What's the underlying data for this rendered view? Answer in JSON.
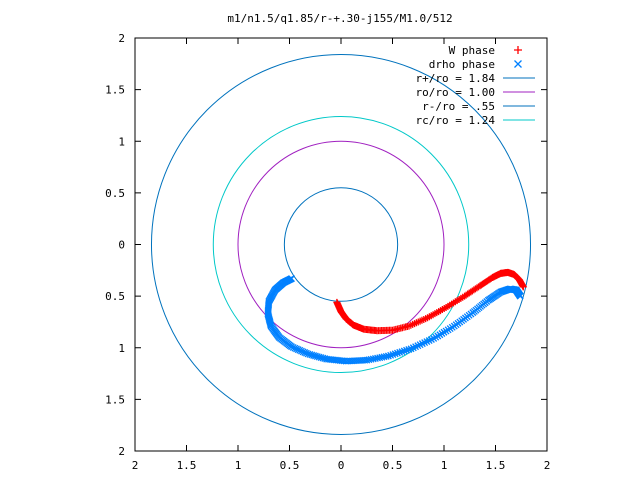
{
  "chart_data": {
    "type": "line",
    "title": "m1/n1.5/q1.85/r-+.30-j155/M1.0/512",
    "xlim": [
      -2,
      2
    ],
    "ylim": [
      -2,
      2
    ],
    "xticks": [
      -2,
      -1.5,
      -1,
      -0.5,
      0,
      0.5,
      1,
      1.5,
      2
    ],
    "yticks": [
      -2,
      -1.5,
      -1,
      -0.5,
      0,
      0.5,
      1,
      1.5,
      2
    ],
    "xtick_labels": [
      "2",
      "1.5",
      "1",
      "0.5",
      "0",
      "0.5",
      "1",
      "1.5",
      "2"
    ],
    "ytick_labels": [
      "2",
      "1.5",
      "1",
      "0.5",
      "0",
      "0.5",
      "1",
      "1.5",
      "2"
    ],
    "grid": false,
    "legend_position": "top-right",
    "colors": {
      "w_phase": "#ff0000",
      "drho_phase": "#0080ff",
      "r_plus": "#0072bd",
      "ro": "#a020c0",
      "r_minus": "#0072bd",
      "rc": "#00c8c8"
    },
    "circles": [
      {
        "name": "r+/ro = 1.84",
        "radius": 1.84,
        "color": "#0072bd"
      },
      {
        "name": "ro/ro = 1.00",
        "radius": 1.0,
        "color": "#a020c0"
      },
      {
        "name": "r-/ro = .55",
        "radius": 0.55,
        "color": "#0072bd"
      },
      {
        "name": "rc/ro = 1.24",
        "radius": 1.24,
        "color": "#00c8c8"
      }
    ],
    "series": [
      {
        "name": "W phase",
        "marker": "plus",
        "color": "#ff0000",
        "x": [
          -0.04,
          0.0,
          0.05,
          0.12,
          0.22,
          0.35,
          0.5,
          0.66,
          0.84,
          1.02,
          1.2,
          1.35,
          1.47,
          1.55,
          1.62,
          1.68,
          1.73,
          1.77
        ],
        "y": [
          -0.56,
          -0.65,
          -0.72,
          -0.78,
          -0.82,
          -0.835,
          -0.83,
          -0.79,
          -0.71,
          -0.61,
          -0.5,
          -0.4,
          -0.32,
          -0.28,
          -0.27,
          -0.29,
          -0.34,
          -0.41
        ]
      },
      {
        "name": "drho phase",
        "marker": "cross",
        "color": "#0080ff",
        "x": [
          -0.48,
          -0.56,
          -0.64,
          -0.7,
          -0.71,
          -0.68,
          -0.6,
          -0.48,
          -0.32,
          -0.14,
          0.05,
          0.25,
          0.46,
          0.68,
          0.9,
          1.1,
          1.28,
          1.43,
          1.55,
          1.64,
          1.7,
          1.74
        ],
        "y": [
          -0.33,
          -0.37,
          -0.44,
          -0.55,
          -0.67,
          -0.79,
          -0.9,
          -0.99,
          -1.06,
          -1.11,
          -1.13,
          -1.12,
          -1.08,
          -1.01,
          -0.91,
          -0.79,
          -0.66,
          -0.54,
          -0.46,
          -0.43,
          -0.44,
          -0.5
        ]
      }
    ]
  }
}
